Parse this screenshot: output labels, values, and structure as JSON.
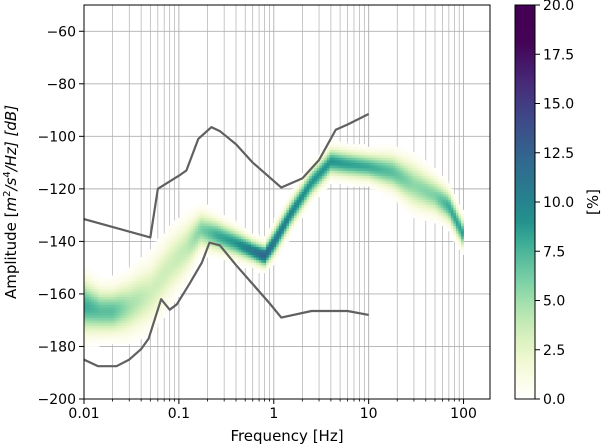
{
  "chart_data": {
    "type": "heatmap",
    "title": "",
    "xlabel": "Frequency [Hz]",
    "ylabel": "Amplitude [$m^2/s^4/Hz$] [dB]",
    "ylabel_main": "Amplitude [",
    "ylabel_unit": "m",
    "ylabel_exp1": "2",
    "ylabel_mid": "/s",
    "ylabel_exp2": "4",
    "ylabel_end": "/Hz] [dB]",
    "x_scale": "log",
    "xlim": [
      0.01,
      190
    ],
    "ylim": [
      -200,
      -50
    ],
    "x_ticks": [
      {
        "value": 0.01,
        "label": "0.01"
      },
      {
        "value": 0.1,
        "label": "0.1"
      },
      {
        "value": 1,
        "label": "1"
      },
      {
        "value": 10,
        "label": "10"
      },
      {
        "value": 100,
        "label": "100"
      }
    ],
    "y_ticks": [
      {
        "value": -60,
        "label": "−60"
      },
      {
        "value": -80,
        "label": "−80"
      },
      {
        "value": -100,
        "label": "−100"
      },
      {
        "value": -120,
        "label": "−120"
      },
      {
        "value": -140,
        "label": "−140"
      },
      {
        "value": -160,
        "label": "−160"
      },
      {
        "value": -180,
        "label": "−180"
      },
      {
        "value": -200,
        "label": "−200"
      }
    ],
    "grid": true,
    "colorbar": {
      "label": "[%]",
      "range": [
        0,
        20
      ],
      "colormap": "viridis_r",
      "ticks": [
        {
          "value": 0,
          "label": "0.0"
        },
        {
          "value": 2.5,
          "label": "2.5"
        },
        {
          "value": 5,
          "label": "5.0"
        },
        {
          "value": 7.5,
          "label": "7.5"
        },
        {
          "value": 10,
          "label": "10.0"
        },
        {
          "value": 12.5,
          "label": "12.5"
        },
        {
          "value": 15,
          "label": "15.0"
        },
        {
          "value": 17.5,
          "label": "17.5"
        },
        {
          "value": 20,
          "label": "20.0"
        }
      ]
    },
    "density_ridge": [
      {
        "f": 0.01,
        "db": -165,
        "spread": 6,
        "peak": 8
      },
      {
        "f": 0.015,
        "db": -167,
        "spread": 5,
        "peak": 7
      },
      {
        "f": 0.02,
        "db": -167,
        "spread": 5,
        "peak": 7
      },
      {
        "f": 0.03,
        "db": -165,
        "spread": 6,
        "peak": 5
      },
      {
        "f": 0.05,
        "db": -160,
        "spread": 7,
        "peak": 3.5
      },
      {
        "f": 0.08,
        "db": -150,
        "spread": 7,
        "peak": 3.5
      },
      {
        "f": 0.12,
        "db": -143,
        "spread": 6,
        "peak": 4
      },
      {
        "f": 0.17,
        "db": -136,
        "spread": 4,
        "peak": 6
      },
      {
        "f": 0.25,
        "db": -138,
        "spread": 3.5,
        "peak": 8
      },
      {
        "f": 0.4,
        "db": -141,
        "spread": 3,
        "peak": 9
      },
      {
        "f": 0.6,
        "db": -144,
        "spread": 2.5,
        "peak": 11
      },
      {
        "f": 0.8,
        "db": -146,
        "spread": 2.5,
        "peak": 12.5
      },
      {
        "f": 1.0,
        "db": -141,
        "spread": 3,
        "peak": 11
      },
      {
        "f": 1.5,
        "db": -130,
        "spread": 3,
        "peak": 10
      },
      {
        "f": 2.5,
        "db": -118,
        "spread": 3,
        "peak": 9
      },
      {
        "f": 4,
        "db": -110,
        "spread": 3,
        "peak": 9
      },
      {
        "f": 6,
        "db": -111,
        "spread": 3,
        "peak": 8.5
      },
      {
        "f": 10,
        "db": -112,
        "spread": 3,
        "peak": 8
      },
      {
        "f": 18,
        "db": -114,
        "spread": 4,
        "peak": 7
      },
      {
        "f": 30,
        "db": -119,
        "spread": 5,
        "peak": 5.5
      },
      {
        "f": 50,
        "db": -123,
        "spread": 4,
        "peak": 6
      },
      {
        "f": 70,
        "db": -127,
        "spread": 3.5,
        "peak": 8
      },
      {
        "f": 100,
        "db": -138,
        "spread": 3,
        "peak": 8.5
      }
    ],
    "series": [
      {
        "x": [
          0.01,
          0.05,
          0.06,
          0.1,
          0.12,
          0.16,
          0.22,
          0.27,
          0.4,
          0.6,
          1.2,
          2.0,
          3.0,
          4.5,
          6.0,
          10.0
        ],
        "y": [
          -131.5,
          -138.5,
          -120.0,
          -115.0,
          -113.0,
          -101.0,
          -96.5,
          -98.0,
          -103.0,
          -110.0,
          -119.5,
          -116.0,
          -109.0,
          -97.5,
          -95.5,
          -91.5
        ]
      },
      {
        "x": [
          0.01,
          0.014,
          0.022,
          0.03,
          0.04,
          0.048,
          0.065,
          0.08,
          0.095,
          0.13,
          0.175,
          0.21,
          0.27,
          0.4,
          0.9,
          1.2,
          2.5,
          6.0,
          10.0
        ],
        "y": [
          -185.0,
          -187.5,
          -187.5,
          -185.0,
          -181.0,
          -177.0,
          -162.0,
          -166.0,
          -164.0,
          -156.0,
          -148.0,
          -140.5,
          -141.5,
          -149.0,
          -163.5,
          -169.0,
          -166.5,
          -166.5,
          -168.0
        ]
      }
    ]
  }
}
